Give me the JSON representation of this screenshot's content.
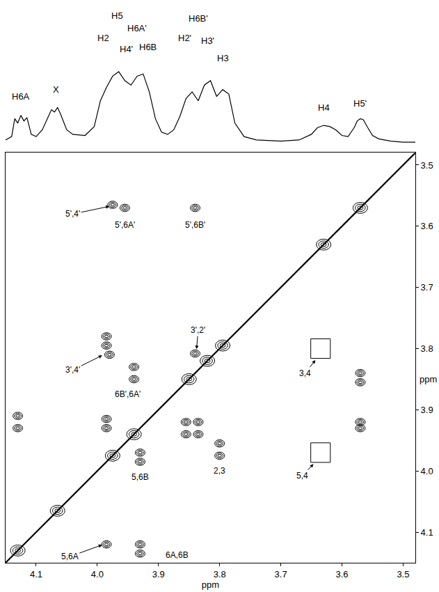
{
  "chart_data": {
    "type": "contour",
    "x_label": "ppm",
    "y_label": "ppm",
    "xlim": [
      4.15,
      3.48
    ],
    "ylim": [
      4.15,
      3.48
    ],
    "xticks": [
      4.1,
      {
        "value": 4,
        "label": "4.0"
      },
      3.9,
      3.8,
      3.7,
      3.6,
      3.5
    ],
    "yticks": [
      3.5,
      3.6,
      3.7,
      3.8,
      3.9,
      {
        "value": 4,
        "label": "4.0"
      },
      4.1
    ],
    "grid": false,
    "spectrum": {
      "x": [
        4.15,
        4.14,
        4.135,
        4.13,
        4.125,
        4.12,
        4.115,
        4.108,
        4.1,
        4.09,
        4.08,
        4.075,
        4.07,
        4.065,
        4.06,
        4.05,
        4.04,
        4.02,
        4.005,
        3.995,
        3.985,
        3.975,
        3.965,
        3.955,
        3.945,
        3.935,
        3.925,
        3.915,
        3.905,
        3.895,
        3.885,
        3.875,
        3.865,
        3.855,
        3.845,
        3.835,
        3.825,
        3.815,
        3.805,
        3.795,
        3.785,
        3.775,
        3.76,
        3.74,
        3.7,
        3.67,
        3.65,
        3.64,
        3.63,
        3.62,
        3.61,
        3.6,
        3.59,
        3.58,
        3.575,
        3.57,
        3.565,
        3.56,
        3.55,
        3.54,
        3.52,
        3.5,
        3.48
      ],
      "values": [
        3,
        6,
        22,
        18,
        25,
        20,
        23,
        8,
        6,
        12,
        24,
        30,
        28,
        32,
        26,
        12,
        8,
        7,
        15,
        38,
        50,
        60,
        64,
        56,
        52,
        60,
        62,
        46,
        22,
        10,
        8,
        12,
        24,
        40,
        46,
        38,
        52,
        56,
        42,
        48,
        44,
        18,
        6,
        3,
        2,
        3,
        8,
        14,
        16,
        15,
        12,
        7,
        6,
        14,
        20,
        22,
        21,
        16,
        7,
        4,
        2,
        1,
        1
      ],
      "y2lim": [
        0,
        125
      ],
      "peak_labels": [
        {
          "text": "H6A",
          "x": 4.125,
          "y": 36
        },
        {
          "text": "X",
          "x": 4.067,
          "y": 42
        },
        {
          "text": "H5",
          "x": 3.968,
          "y": 108
        },
        {
          "text": "H6A'",
          "x": 3.935,
          "y": 97
        },
        {
          "text": "H2",
          "x": 3.99,
          "y": 88
        },
        {
          "text": "H4'",
          "x": 3.953,
          "y": 78
        },
        {
          "text": "H6B",
          "x": 3.917,
          "y": 80
        },
        {
          "text": "H6B'",
          "x": 3.835,
          "y": 106
        },
        {
          "text": "H2'",
          "x": 3.857,
          "y": 88
        },
        {
          "text": "H3'",
          "x": 3.82,
          "y": 86
        },
        {
          "text": "H3",
          "x": 3.795,
          "y": 70
        },
        {
          "text": "H4",
          "x": 3.63,
          "y": 26
        },
        {
          "text": "H5'",
          "x": 3.57,
          "y": 30
        }
      ]
    },
    "diagonal_peaks": [
      4.13,
      4.065,
      3.975,
      3.94,
      3.85,
      3.82,
      3.795,
      3.63,
      3.57
    ],
    "cross_peaks": {
      "x": [
        3.955,
        3.84,
        3.975,
        3.985,
        3.985,
        3.98,
        3.94,
        3.94,
        3.985,
        3.985,
        4.13,
        4.13,
        3.855,
        3.835,
        3.855,
        3.835,
        3.8,
        3.8,
        3.93,
        3.93,
        3.93,
        3.93,
        3.985,
        3.57,
        3.57,
        3.57,
        3.57,
        3.84
      ],
      "y": [
        3.57,
        3.57,
        3.565,
        3.78,
        3.795,
        3.81,
        3.83,
        3.85,
        3.915,
        3.93,
        3.91,
        3.93,
        3.92,
        3.92,
        3.94,
        3.94,
        3.955,
        3.975,
        3.97,
        3.985,
        4.12,
        4.135,
        4.12,
        3.84,
        3.855,
        3.92,
        3.93,
        3.808
      ]
    },
    "boxes": [
      {
        "x": 3.635,
        "y": 3.8
      },
      {
        "x": 3.635,
        "y": 3.97
      }
    ],
    "annotations": [
      {
        "text": "5',4'",
        "x": 4.04,
        "y": 3.58,
        "arrow_x": 3.978,
        "arrow_y": 3.567
      },
      {
        "text": "5',6A'",
        "x": 3.955,
        "y": 3.598
      },
      {
        "text": "5',6B'",
        "x": 3.84,
        "y": 3.598
      },
      {
        "text": "3',2'",
        "x": 3.835,
        "y": 3.77,
        "arrow_x": 3.838,
        "arrow_y": 3.803
      },
      {
        "text": "3',4'",
        "x": 4.04,
        "y": 3.835,
        "arrow_x": 3.99,
        "arrow_y": 3.81
      },
      {
        "text": "6B',6A'",
        "x": 3.95,
        "y": 3.875
      },
      {
        "text": "2,3",
        "x": 3.8,
        "y": 4.0
      },
      {
        "text": "5,6B",
        "x": 3.93,
        "y": 4.01
      },
      {
        "text": "5,6A",
        "x": 4.045,
        "y": 4.14,
        "arrow_x": 3.99,
        "arrow_y": 4.12
      },
      {
        "text": "6A,6B",
        "x": 3.87,
        "y": 4.138
      },
      {
        "text": "3,4",
        "x": 3.66,
        "y": 3.84,
        "arrow_x": 3.642,
        "arrow_y": 3.817
      },
      {
        "text": "5,4",
        "x": 3.665,
        "y": 4.008,
        "arrow_x": 3.645,
        "arrow_y": 3.987
      }
    ]
  }
}
